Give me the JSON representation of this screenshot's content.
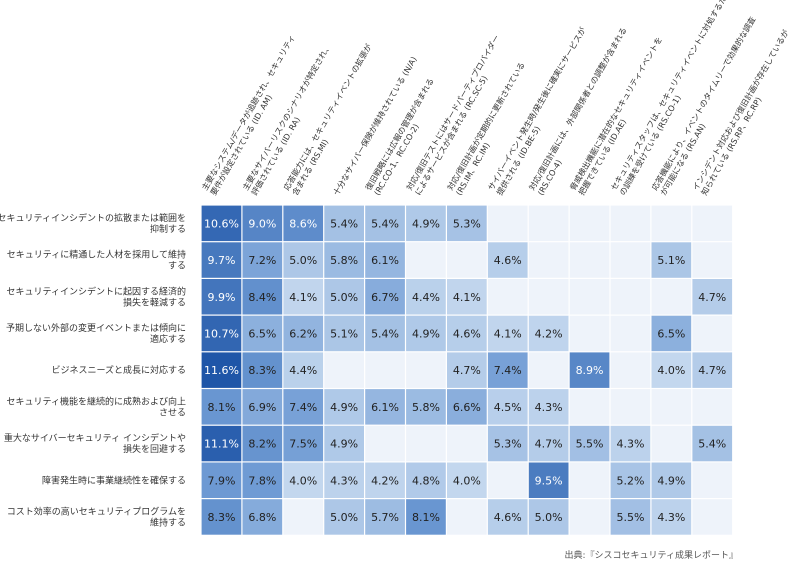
{
  "chart_data": {
    "type": "heatmap",
    "rows": [
      [
        "セキュリティインシデントの拡散または範囲を",
        "抑制する"
      ],
      [
        "セキュリティに精通した人材を採用して維持",
        "する"
      ],
      [
        "セキュリティインシデントに起因する経済的",
        "損失を軽減する"
      ],
      [
        "予期しない外部の変更イベントまたは傾向に",
        "適応する"
      ],
      [
        "ビジネスニーズと成長に対応する"
      ],
      [
        "セキュリティ機能を継続的に成熟および向上",
        "させる"
      ],
      [
        "重大なサイバーセキュリティ インシデントや",
        "損失を回避する"
      ],
      [
        "障害発生時に事業継続性を確保する"
      ],
      [
        "コスト効率の高いセキュリティプログラムを",
        "維持する"
      ]
    ],
    "columns": [
      [
        "主要なシステム/データが追跡され、セキュリティ",
        "要件が設定されている (ID. AM)"
      ],
      [
        "主要なサイバーリスクのシナリオが特定され、",
        "評価されている (ID. RA)"
      ],
      [
        "応答能力には、セキュリティイベントの拡張が",
        "含まれる (RS.MI)"
      ],
      [
        "十分なサイバー保険が維持されている (N/A)"
      ],
      [
        "復旧戦略には広報の管理が含まれる",
        "(RC.CO-1、RC.CO-2)"
      ],
      [
        "対応/復旧テストにはサードパーティプロバイダー",
        "によるサービスが含まれる (RC.SC-5)"
      ],
      [
        "対応/復旧計画が定期的に更新されている",
        "(RS.IM、RC.IM)"
      ],
      [
        "サイバーイベント発生時/発生後に確実にサービスが",
        "提供される (ID.BE-5)"
      ],
      [
        "対応/復旧計画には、外部関係者との調整が含まれる",
        "(RS.CO-4)"
      ],
      [
        "脅威検出機能に潜在的なセキュリティイベントを",
        "把握できている (ID.AE)"
      ],
      [
        "セキュリティスタッフは、セキュリティイベントに対処するため",
        "の訓練を受けている (RS.CO-1)"
      ],
      [
        "応答機能により、イベントのタイムリーで効果的な調査",
        "が可能になる (RS.AN)"
      ],
      [
        "インシデント対応および復旧計画が存在しているが",
        "知られている (RS.RP、RC.RP)"
      ]
    ],
    "values": [
      [
        10.6,
        9.0,
        8.6,
        5.4,
        5.4,
        4.9,
        5.3,
        null,
        null,
        null,
        null,
        null,
        null
      ],
      [
        9.7,
        7.2,
        5.0,
        5.8,
        6.1,
        null,
        null,
        4.6,
        null,
        null,
        null,
        5.1,
        null
      ],
      [
        9.9,
        8.4,
        4.1,
        5.0,
        6.7,
        4.4,
        4.1,
        null,
        null,
        null,
        null,
        null,
        4.7
      ],
      [
        10.7,
        6.5,
        6.2,
        5.1,
        5.4,
        4.9,
        4.6,
        4.1,
        4.2,
        null,
        null,
        6.5,
        null
      ],
      [
        11.6,
        8.3,
        4.4,
        null,
        null,
        null,
        4.7,
        7.4,
        null,
        8.9,
        null,
        4.0,
        4.7
      ],
      [
        8.1,
        6.9,
        7.4,
        4.9,
        6.1,
        5.8,
        6.6,
        4.5,
        4.3,
        null,
        null,
        null,
        null
      ],
      [
        11.1,
        8.2,
        7.5,
        4.9,
        null,
        null,
        null,
        5.3,
        4.7,
        5.5,
        4.3,
        null,
        5.4
      ],
      [
        7.9,
        7.8,
        4.0,
        4.3,
        4.2,
        4.8,
        4.0,
        null,
        9.5,
        null,
        5.2,
        4.9,
        null
      ],
      [
        8.3,
        6.8,
        null,
        5.0,
        5.7,
        8.1,
        null,
        4.6,
        5.0,
        null,
        5.5,
        4.3,
        null
      ]
    ],
    "value_format": "percent_one_decimal",
    "colors": {
      "empty": "#eef3fa",
      "low": "#c3d7ee",
      "mid": "#6f9bd4",
      "high": "#1f56a8",
      "text_dark": "#222222",
      "text_light": "#ffffff"
    },
    "legend": "none"
  },
  "source": "出典:『シスコセキュリティ成果レポート』"
}
